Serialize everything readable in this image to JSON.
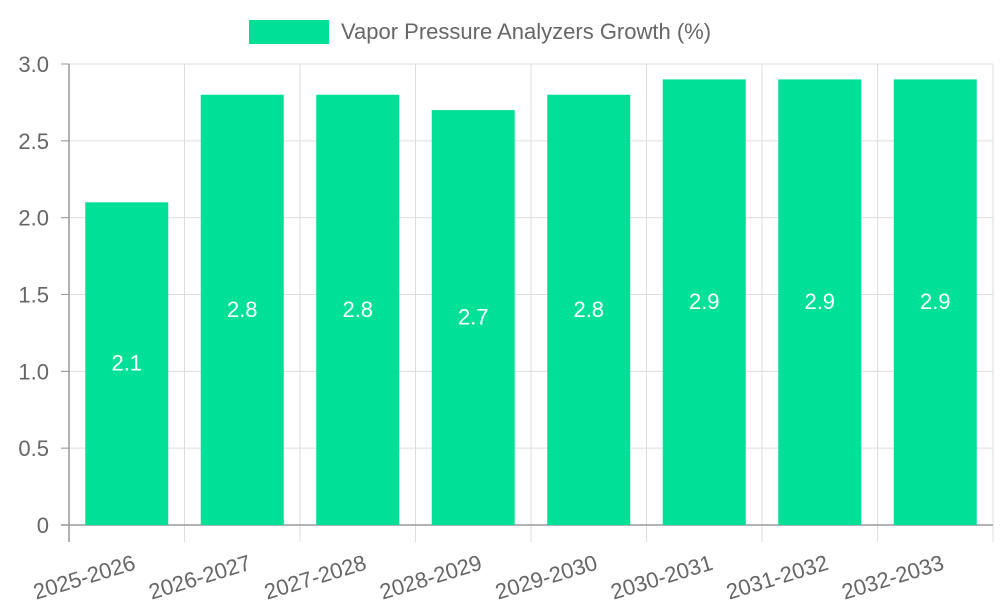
{
  "chart_data": {
    "type": "bar",
    "categories": [
      "2025-2026",
      "2026-2027",
      "2027-2028",
      "2028-2029",
      "2029-2030",
      "2030-2031",
      "2031-2032",
      "2032-2033"
    ],
    "series": [
      {
        "name": "Vapor Pressure Analyzers Growth (%)",
        "values": [
          2.1,
          2.8,
          2.8,
          2.7,
          2.8,
          2.9,
          2.9,
          2.9
        ],
        "data_labels": [
          "2.1",
          "2.8",
          "2.8",
          "2.7",
          "2.8",
          "2.9",
          "2.9",
          "2.9"
        ]
      }
    ],
    "y_ticks": [
      "0",
      "0.5",
      "1.0",
      "1.5",
      "2.0",
      "2.5",
      "3.0"
    ],
    "ylim": [
      0,
      3.0
    ],
    "grid": true,
    "legend_position": "top-center",
    "colors": {
      "bar": "#00e096",
      "grid": "#dddddd",
      "axis": "#999999",
      "tick_text": "#666666",
      "data_label": "#ffffff"
    }
  }
}
